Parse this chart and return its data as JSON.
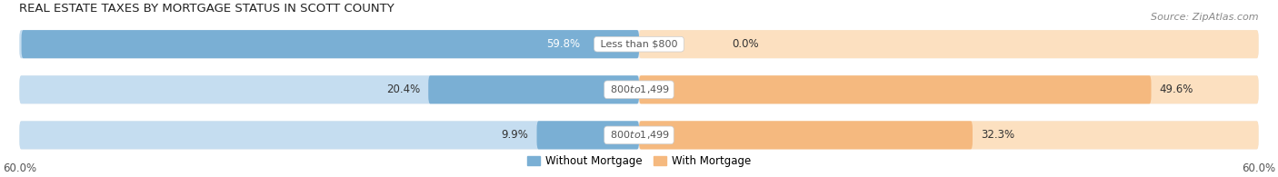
{
  "title": "REAL ESTATE TAXES BY MORTGAGE STATUS IN SCOTT COUNTY",
  "source": "Source: ZipAtlas.com",
  "rows": [
    {
      "label": "Less than $800",
      "without": 59.8,
      "with": 0.0
    },
    {
      "label": "$800 to $1,499",
      "without": 20.4,
      "with": 49.6
    },
    {
      "label": "$800 to $1,499",
      "without": 9.9,
      "with": 32.3
    }
  ],
  "xlim": 60.0,
  "color_without": "#7aafd4",
  "color_with": "#f5b97f",
  "color_without_bg": "#c5ddf0",
  "color_with_bg": "#fce0c0",
  "row_bg_color": "#f0f0f0",
  "bar_height": 0.62,
  "title_fontsize": 9.5,
  "source_fontsize": 8,
  "label_fontsize": 8.5,
  "tick_fontsize": 8.5,
  "legend_fontsize": 8.5,
  "axis_label_color": "#555555",
  "text_color_outside": "#333333",
  "center_label_color": "#555555",
  "row_sep_color": "#ffffff"
}
